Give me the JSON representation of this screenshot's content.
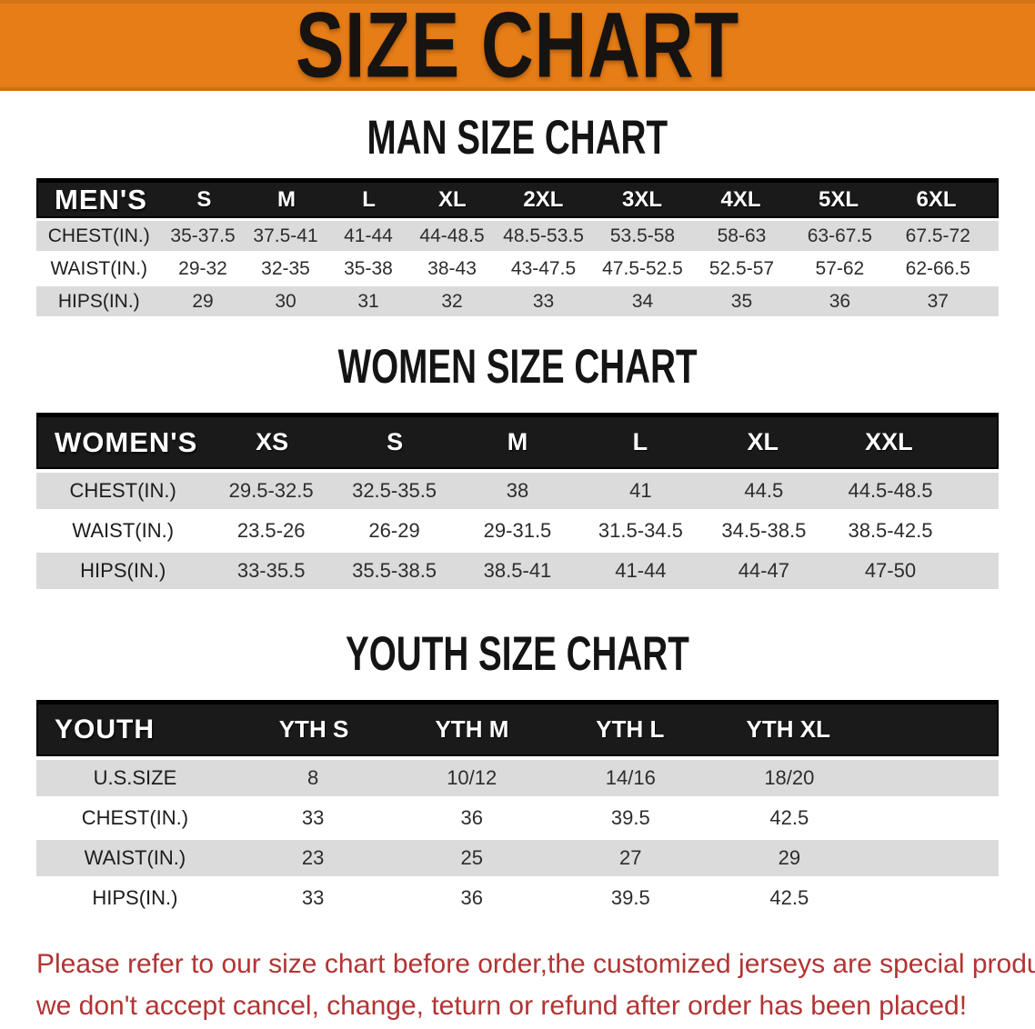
{
  "banner": {
    "title": "SIZE CHART",
    "background_color": "#E67D17",
    "text_color": "#171310"
  },
  "sections": [
    {
      "heading": "MAN SIZE CHART",
      "label": "MEN'S",
      "columns": [
        "S",
        "M",
        "L",
        "XL",
        "2XL",
        "3XL",
        "4XL",
        "5XL",
        "6XL"
      ],
      "rows": [
        {
          "label": "CHEST(IN.)",
          "values": [
            "35-37.5",
            "37.5-41",
            "41-44",
            "44-48.5",
            "48.5-53.5",
            "53.5-58",
            "58-63",
            "63-67.5",
            "67.5-72"
          ]
        },
        {
          "label": "WAIST(IN.)",
          "values": [
            "29-32",
            "32-35",
            "35-38",
            "38-43",
            "43-47.5",
            "47.5-52.5",
            "52.5-57",
            "57-62",
            "62-66.5"
          ]
        },
        {
          "label": "HIPS(IN.)",
          "values": [
            "29",
            "30",
            "31",
            "32",
            "33",
            "34",
            "35",
            "36",
            "37"
          ]
        }
      ]
    },
    {
      "heading": "WOMEN SIZE CHART",
      "label": "WOMEN'S",
      "columns": [
        "XS",
        "S",
        "M",
        "L",
        "XL",
        "XXL"
      ],
      "rows": [
        {
          "label": "CHEST(IN.)",
          "values": [
            "29.5-32.5",
            "32.5-35.5",
            "38",
            "41",
            "44.5",
            "44.5-48.5"
          ]
        },
        {
          "label": "WAIST(IN.)",
          "values": [
            "23.5-26",
            "26-29",
            "29-31.5",
            "31.5-34.5",
            "34.5-38.5",
            "38.5-42.5"
          ]
        },
        {
          "label": "HIPS(IN.)",
          "values": [
            "33-35.5",
            "35.5-38.5",
            "38.5-41",
            "41-44",
            "44-47",
            "47-50"
          ]
        }
      ]
    },
    {
      "heading": "YOUTH SIZE CHART",
      "label": "YOUTH",
      "columns": [
        "YTH S",
        "YTH M",
        "YTH L",
        "YTH XL"
      ],
      "rows": [
        {
          "label": "U.S.SIZE",
          "values": [
            "8",
            "10/12",
            "14/16",
            "18/20"
          ]
        },
        {
          "label": "CHEST(IN.)",
          "values": [
            "33",
            "36",
            "39.5",
            "42.5"
          ]
        },
        {
          "label": "WAIST(IN.)",
          "values": [
            "23",
            "25",
            "27",
            "29"
          ]
        },
        {
          "label": "HIPS(IN.)",
          "values": [
            "33",
            "36",
            "39.5",
            "42.5"
          ]
        }
      ]
    }
  ],
  "footer": {
    "line1": "Please refer to our size chart before order,the customized jerseys are special products,",
    "line2": "we don't accept cancel, change, teturn or refund after order has been placed!",
    "text_color": "#B23434"
  },
  "colors": {
    "banner_orange": "#E67D17",
    "header_black": "#1a1a1a",
    "row_gray": "#DBDBDB",
    "row_white": "#FFFFFF"
  }
}
